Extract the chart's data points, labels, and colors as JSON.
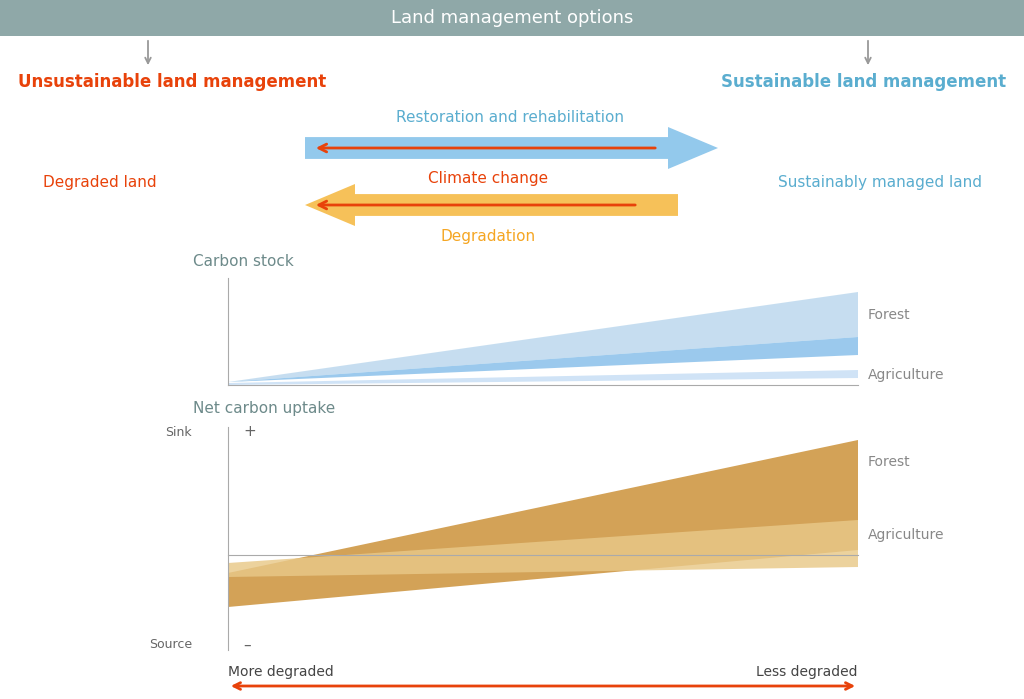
{
  "title_banner": "Land management options",
  "banner_color": "#8fa8a8",
  "banner_text_color": "#ffffff",
  "left_label": "Unsustainable land management",
  "left_label_color": "#e8420a",
  "right_label": "Sustainable land management",
  "right_label_color": "#5aadcf",
  "degraded_land_label": "Degraded land",
  "degraded_land_color": "#e8420a",
  "sustainably_managed_label": "Sustainably managed land",
  "sustainably_managed_color": "#5aadcf",
  "restoration_label": "Restoration and rehabilitation",
  "restoration_color": "#5aadcf",
  "climate_change_label": "Climate change",
  "climate_change_color": "#e8420a",
  "degradation_label": "Degradation",
  "degradation_color": "#f5a623",
  "blue_arrow_color": "#7bbde8",
  "orange_arrow_color": "#f5b942",
  "red_arrow_color": "#e8420a",
  "carbon_stock_label": "Carbon stock",
  "net_carbon_uptake_label": "Net carbon uptake",
  "forest_label": "Forest",
  "agriculture_label": "Agriculture",
  "sink_label": "Sink",
  "source_label": "Source",
  "more_degraded_label": "More degraded",
  "less_degraded_label": "Less degraded",
  "bottom_arrow_color": "#e8420a",
  "cs_forest_light_color": "#a8cce8",
  "cs_forest_dark_color": "#7ab8e8",
  "cs_agri_color": "#c8dff5",
  "net_forest_color": "#cd9540",
  "net_agri_color": "#e8c888",
  "label_color_gray": "#6d8a8a",
  "label_color_side": "#888888",
  "plus_label": "+",
  "minus_label": "–",
  "arrow_gray_color": "#999999",
  "axis_color": "#aaaaaa",
  "text_dark": "#444444",
  "text_mid": "#666666"
}
